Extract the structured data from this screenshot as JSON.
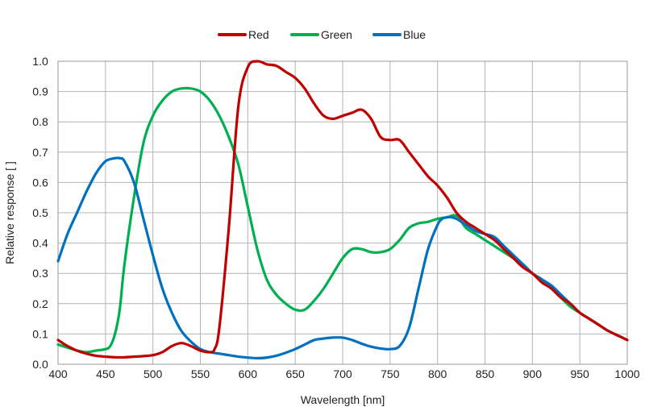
{
  "chart_data": {
    "type": "line",
    "title": "",
    "xlabel": "Wavelength  [nm]",
    "ylabel": "Relative  response  [ ]",
    "xlim": [
      400,
      1000
    ],
    "ylim": [
      0,
      1.0
    ],
    "x_ticks": [
      400,
      450,
      500,
      550,
      600,
      650,
      700,
      750,
      800,
      850,
      900,
      950,
      1000
    ],
    "x_tick_labels": [
      "400",
      "450",
      "500",
      "550",
      "600",
      "650",
      "700",
      "750",
      "800",
      "850",
      "900",
      "950",
      "1000"
    ],
    "y_ticks": [
      0,
      0.1,
      0.2,
      0.3,
      0.4,
      0.5,
      0.6,
      0.7,
      0.8,
      0.9,
      1.0
    ],
    "y_tick_labels": [
      "0.0",
      "0.1",
      "0.2",
      "0.3",
      "0.4",
      "0.5",
      "0.6",
      "0.7",
      "0.8",
      "0.9",
      "1.0"
    ],
    "grid": true,
    "legend_position": "top-center",
    "series": [
      {
        "name": "Red",
        "color": "#c00000",
        "x": [
          400,
          410,
          420,
          430,
          440,
          450,
          460,
          470,
          480,
          490,
          500,
          510,
          520,
          530,
          540,
          550,
          560,
          565,
          570,
          580,
          590,
          600,
          610,
          620,
          630,
          640,
          650,
          660,
          670,
          680,
          690,
          700,
          710,
          720,
          730,
          740,
          750,
          760,
          770,
          780,
          790,
          800,
          810,
          820,
          830,
          840,
          850,
          860,
          870,
          880,
          890,
          900,
          910,
          920,
          930,
          940,
          950,
          960,
          970,
          980,
          990,
          1000
        ],
        "y": [
          0.08,
          0.06,
          0.045,
          0.035,
          0.028,
          0.025,
          0.023,
          0.023,
          0.025,
          0.027,
          0.03,
          0.04,
          0.06,
          0.07,
          0.06,
          0.045,
          0.04,
          0.05,
          0.12,
          0.45,
          0.85,
          0.98,
          1.0,
          0.99,
          0.985,
          0.965,
          0.945,
          0.91,
          0.86,
          0.82,
          0.81,
          0.82,
          0.83,
          0.84,
          0.81,
          0.75,
          0.74,
          0.74,
          0.7,
          0.66,
          0.62,
          0.59,
          0.55,
          0.5,
          0.47,
          0.45,
          0.43,
          0.41,
          0.38,
          0.35,
          0.32,
          0.3,
          0.27,
          0.25,
          0.22,
          0.2,
          0.17,
          0.15,
          0.13,
          0.11,
          0.095,
          0.08
        ]
      },
      {
        "name": "Green",
        "color": "#00b050",
        "x": [
          400,
          410,
          420,
          430,
          440,
          450,
          455,
          460,
          465,
          470,
          480,
          490,
          500,
          510,
          520,
          530,
          540,
          550,
          560,
          570,
          580,
          590,
          600,
          610,
          620,
          630,
          640,
          650,
          660,
          670,
          680,
          690,
          700,
          710,
          720,
          730,
          740,
          750,
          760,
          770,
          780,
          790,
          800,
          810,
          820,
          830,
          840,
          850,
          860,
          870,
          880,
          890,
          900,
          910,
          920,
          930,
          940,
          950,
          960,
          970,
          980,
          990,
          1000
        ],
        "y": [
          0.065,
          0.055,
          0.045,
          0.04,
          0.045,
          0.05,
          0.06,
          0.1,
          0.18,
          0.33,
          0.55,
          0.73,
          0.82,
          0.87,
          0.9,
          0.91,
          0.91,
          0.9,
          0.87,
          0.82,
          0.75,
          0.66,
          0.52,
          0.38,
          0.28,
          0.23,
          0.2,
          0.18,
          0.18,
          0.21,
          0.25,
          0.3,
          0.35,
          0.38,
          0.38,
          0.37,
          0.37,
          0.38,
          0.41,
          0.45,
          0.465,
          0.47,
          0.48,
          0.485,
          0.49,
          0.45,
          0.43,
          0.41,
          0.39,
          0.37,
          0.35,
          0.33,
          0.3,
          0.28,
          0.25,
          0.22,
          0.19,
          0.17,
          0.15,
          0.13,
          0.11,
          0.095,
          0.08
        ]
      },
      {
        "name": "Blue",
        "color": "#0070c0",
        "x": [
          400,
          410,
          420,
          430,
          440,
          450,
          460,
          465,
          470,
          480,
          490,
          500,
          510,
          520,
          530,
          540,
          550,
          560,
          570,
          580,
          590,
          600,
          610,
          620,
          630,
          640,
          650,
          660,
          670,
          680,
          690,
          700,
          710,
          720,
          730,
          740,
          750,
          760,
          770,
          780,
          790,
          800,
          805,
          810,
          815,
          820,
          830,
          840,
          850,
          860,
          870,
          880,
          890,
          900,
          910,
          920,
          930,
          940,
          950,
          960,
          970,
          980,
          990,
          1000
        ],
        "y": [
          0.34,
          0.43,
          0.5,
          0.57,
          0.63,
          0.67,
          0.68,
          0.68,
          0.67,
          0.6,
          0.48,
          0.36,
          0.25,
          0.17,
          0.11,
          0.075,
          0.05,
          0.04,
          0.035,
          0.03,
          0.025,
          0.022,
          0.02,
          0.022,
          0.028,
          0.038,
          0.05,
          0.065,
          0.08,
          0.085,
          0.088,
          0.088,
          0.08,
          0.068,
          0.058,
          0.052,
          0.05,
          0.06,
          0.12,
          0.25,
          0.38,
          0.46,
          0.48,
          0.485,
          0.485,
          0.48,
          0.46,
          0.44,
          0.43,
          0.42,
          0.39,
          0.36,
          0.33,
          0.3,
          0.28,
          0.26,
          0.23,
          0.2,
          0.17,
          0.15,
          0.13,
          0.11,
          0.095,
          0.08
        ]
      }
    ]
  }
}
